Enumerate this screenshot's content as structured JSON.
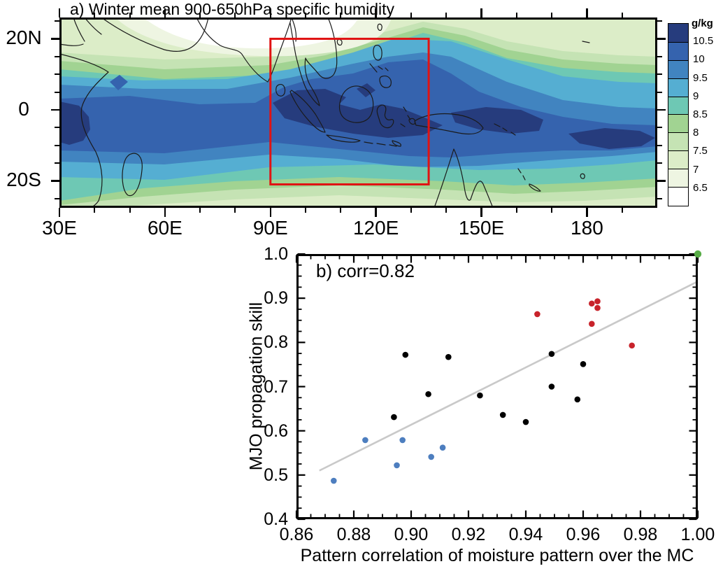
{
  "chart_data": [
    {
      "type": "contour-map",
      "panel": "a",
      "title": "a) Winter mean 900-650hPa specific humidity",
      "lon_range": [
        30,
        200
      ],
      "lat_range": [
        -27.6,
        26
      ],
      "lon_major_ticks": [
        {
          "lon": 30,
          "label": "30E"
        },
        {
          "lon": 60,
          "label": "60E"
        },
        {
          "lon": 90,
          "label": "90E"
        },
        {
          "lon": 120,
          "label": "120E"
        },
        {
          "lon": 150,
          "label": "150E"
        },
        {
          "lon": 180,
          "label": "180"
        }
      ],
      "lon_minor_step": 10,
      "lat_major_ticks": [
        {
          "lat": 20,
          "label": "20N"
        },
        {
          "lat": 0,
          "label": "0"
        },
        {
          "lat": -20,
          "label": "20S"
        }
      ],
      "lat_minor_step": 5,
      "colorbar": {
        "units": "g/kg",
        "levels_low_to_high": [
          6.5,
          7,
          7.5,
          8,
          8.5,
          9,
          9.5,
          10,
          10.5
        ],
        "colors_low_to_high": [
          "#ffffff",
          "#eef5e2",
          "#dcedc8",
          "#c5e3b4",
          "#a1d392",
          "#6ec8b4",
          "#55aed2",
          "#4184c0",
          "#3563ae",
          "#263c7d"
        ]
      },
      "highlight_box": {
        "lon_min": 90,
        "lon_max": 135,
        "lat_min": -21,
        "lat_max": 20,
        "color": "#e01313"
      }
    },
    {
      "type": "scatter",
      "panel": "b",
      "annotation": "b) corr=0.82",
      "xlabel": "Pattern correlation of moisture pattern over the MC",
      "ylabel": "MJO propagation skill",
      "xlim": [
        0.86,
        1.0
      ],
      "ylim": [
        0.4,
        1.0
      ],
      "xticks": [
        0.86,
        0.88,
        0.9,
        0.92,
        0.94,
        0.96,
        0.98,
        1.0
      ],
      "xtick_labels": [
        "0.86",
        "0.88",
        "0.90",
        "0.92",
        "0.94",
        "0.96",
        "0.98",
        "1.00"
      ],
      "x_minor_step": 0.005,
      "yticks": [
        0.4,
        0.5,
        0.6,
        0.7,
        0.8,
        0.9,
        1.0
      ],
      "ytick_labels": [
        "0.4",
        "0.5",
        "0.6",
        "0.7",
        "0.8",
        "0.9",
        "1.0"
      ],
      "y_minor_step": 0.025,
      "series": [
        {
          "name": "models-black",
          "color": "#000000",
          "marker_radius": 4.3,
          "points": [
            [
              0.894,
              0.631
            ],
            [
              0.898,
              0.772
            ],
            [
              0.906,
              0.683
            ],
            [
              0.913,
              0.767
            ],
            [
              0.924,
              0.68
            ],
            [
              0.932,
              0.636
            ],
            [
              0.94,
              0.62
            ],
            [
              0.949,
              0.7
            ],
            [
              0.949,
              0.774
            ],
            [
              0.958,
              0.671
            ],
            [
              0.96,
              0.751
            ]
          ]
        },
        {
          "name": "models-blue",
          "color": "#4d7ebf",
          "marker_radius": 4.3,
          "points": [
            [
              0.873,
              0.487
            ],
            [
              0.884,
              0.579
            ],
            [
              0.895,
              0.522
            ],
            [
              0.897,
              0.579
            ],
            [
              0.907,
              0.541
            ],
            [
              0.911,
              0.562
            ]
          ]
        },
        {
          "name": "models-red",
          "color": "#c8232b",
          "marker_radius": 4.3,
          "points": [
            [
              0.944,
              0.864
            ],
            [
              0.963,
              0.842
            ],
            [
              0.963,
              0.888
            ],
            [
              0.965,
              0.893
            ],
            [
              0.965,
              0.878
            ],
            [
              0.977,
              0.793
            ]
          ]
        },
        {
          "name": "reference-green",
          "color": "#57ac46",
          "marker_radius": 5.2,
          "points": [
            [
              1.0,
              1.0
            ]
          ]
        }
      ],
      "trendline": {
        "color": "#c9c9c9",
        "x1": 0.868,
        "y1": 0.51,
        "x2": 1.0,
        "y2": 0.938
      }
    }
  ]
}
